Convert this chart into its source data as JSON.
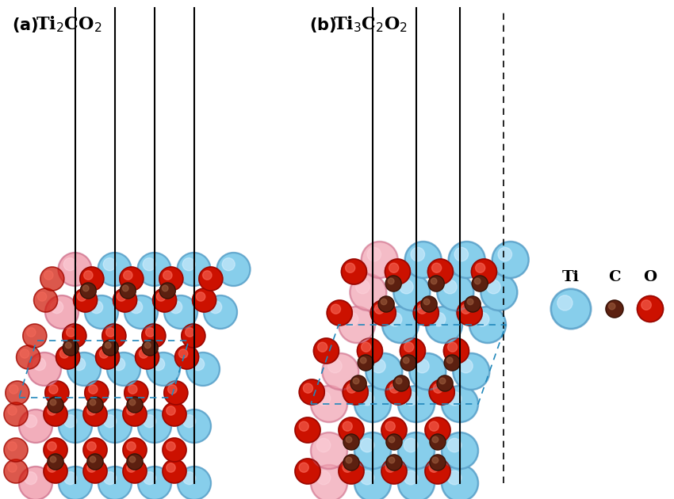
{
  "title_a": "(a)  Ti₂CO₂",
  "title_b": "(b)  Ti₃C₂O₂",
  "bg_color": "#FFFFFF",
  "ti_base": "#87CEEB",
  "ti_edge": "#4A8FBB",
  "ti_highlight": "#D8F0FF",
  "c_base": "#5C2010",
  "c_edge": "#1A0800",
  "c_highlight": "#A06040",
  "o_base": "#CC1100",
  "o_edge": "#7A0000",
  "o_highlight": "#FF7060",
  "pink_base": "#F0A0B0",
  "pink_edge": "#C06080",
  "pink_highlight": "#FFD8E0"
}
